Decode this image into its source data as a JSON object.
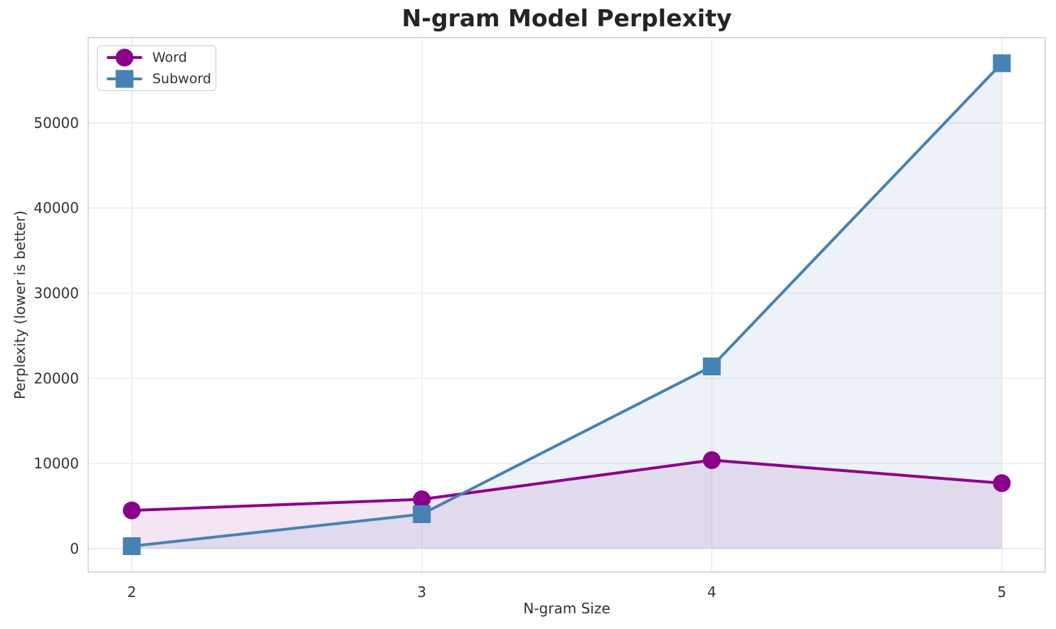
{
  "title": "N-gram Model Perplexity",
  "legend": {
    "position": "upper left",
    "items": [
      {
        "label": "Word",
        "marker": "circle",
        "color": "#8B008B"
      },
      {
        "label": "Subword",
        "marker": "square",
        "color": "#4682B4"
      }
    ]
  },
  "chart_data": {
    "type": "line",
    "title": "N-gram Model Perplexity",
    "xlabel": "N-gram Size",
    "ylabel": "Perplexity (lower is better)",
    "x": [
      2,
      3,
      4,
      5
    ],
    "series": [
      {
        "name": "Word",
        "values": [
          4500,
          5800,
          10400,
          7700
        ],
        "color": "#8B008B",
        "marker": "circle",
        "area_fill": true,
        "fill_alpha": 0.1
      },
      {
        "name": "Subword",
        "values": [
          300,
          4050,
          21400,
          57000
        ],
        "color": "#4682B4",
        "marker": "square",
        "area_fill": true,
        "fill_alpha": 0.1
      }
    ],
    "xticks": [
      2,
      3,
      4,
      5
    ],
    "yticks": [
      0,
      10000,
      20000,
      30000,
      40000,
      50000
    ],
    "xlim": [
      1.85,
      5.15
    ],
    "ylim": [
      -2750,
      60000
    ],
    "grid": true,
    "legend_position": "upper left"
  },
  "style": {
    "grid_color": "#ececec",
    "spine_color": "#d2d2d2",
    "tick_text_color": "#333333",
    "line_width": 4,
    "marker_size": 25
  }
}
